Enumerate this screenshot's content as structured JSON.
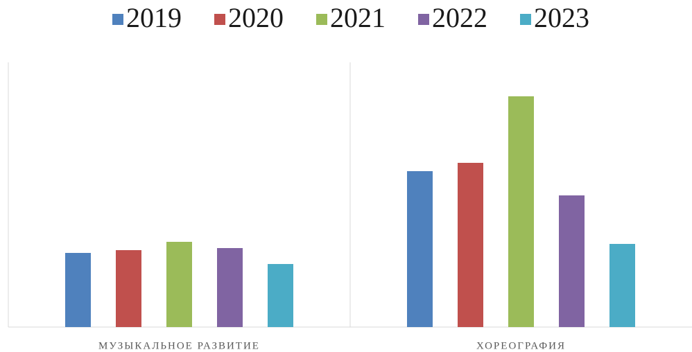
{
  "chart_data": {
    "type": "bar",
    "categories": [
      "МУЗЫКАЛЬНОЕ РАЗВИТИЕ",
      "ХОРЕОГРАФИЯ"
    ],
    "series": [
      {
        "name": "2019",
        "color": "#4f81bd",
        "values": [
          107,
          225
        ]
      },
      {
        "name": "2020",
        "color": "#c0504d",
        "values": [
          111,
          237
        ]
      },
      {
        "name": "2021",
        "color": "#9bbb59",
        "values": [
          123,
          333
        ]
      },
      {
        "name": "2022",
        "color": "#8064a2",
        "values": [
          114,
          190
        ]
      },
      {
        "name": "2023",
        "color": "#4bacc6",
        "values": [
          91,
          120
        ]
      }
    ],
    "ylim": [
      0,
      382
    ],
    "legend": "top"
  }
}
